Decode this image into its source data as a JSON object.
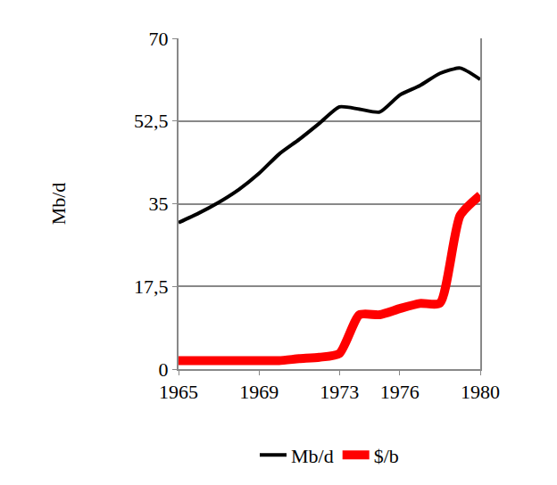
{
  "chart_data": {
    "type": "line",
    "y_label": "Mb/d",
    "x": [
      1965,
      1966,
      1967,
      1968,
      1969,
      1970,
      1971,
      1972,
      1973,
      1974,
      1975,
      1976,
      1977,
      1978,
      1979,
      1980
    ],
    "series": [
      {
        "name": "Mb/d",
        "color": "#000000",
        "values": [
          31,
          33,
          35.3,
          38,
          41.4,
          45.5,
          48.6,
          52,
          55.5,
          55,
          54.4,
          58,
          60,
          62.6,
          63.7,
          61.3
        ]
      },
      {
        "name": "$/b",
        "color": "#ff0000",
        "values": [
          1.8,
          1.8,
          1.8,
          1.8,
          1.8,
          1.8,
          2.2,
          2.5,
          3.3,
          11.5,
          11.5,
          12.8,
          13.9,
          14,
          32.5,
          36.8
        ]
      }
    ],
    "xlim": [
      1965,
      1980
    ],
    "xticks": [
      1965,
      1969,
      1973,
      1976,
      1980
    ],
    "ylim": [
      0,
      70
    ],
    "yticks": [
      0,
      {
        "value": 17.5,
        "label": "17,5"
      },
      35,
      {
        "value": 52.5,
        "label": "52,5"
      },
      70
    ],
    "grid": true,
    "legend": "bottom"
  }
}
